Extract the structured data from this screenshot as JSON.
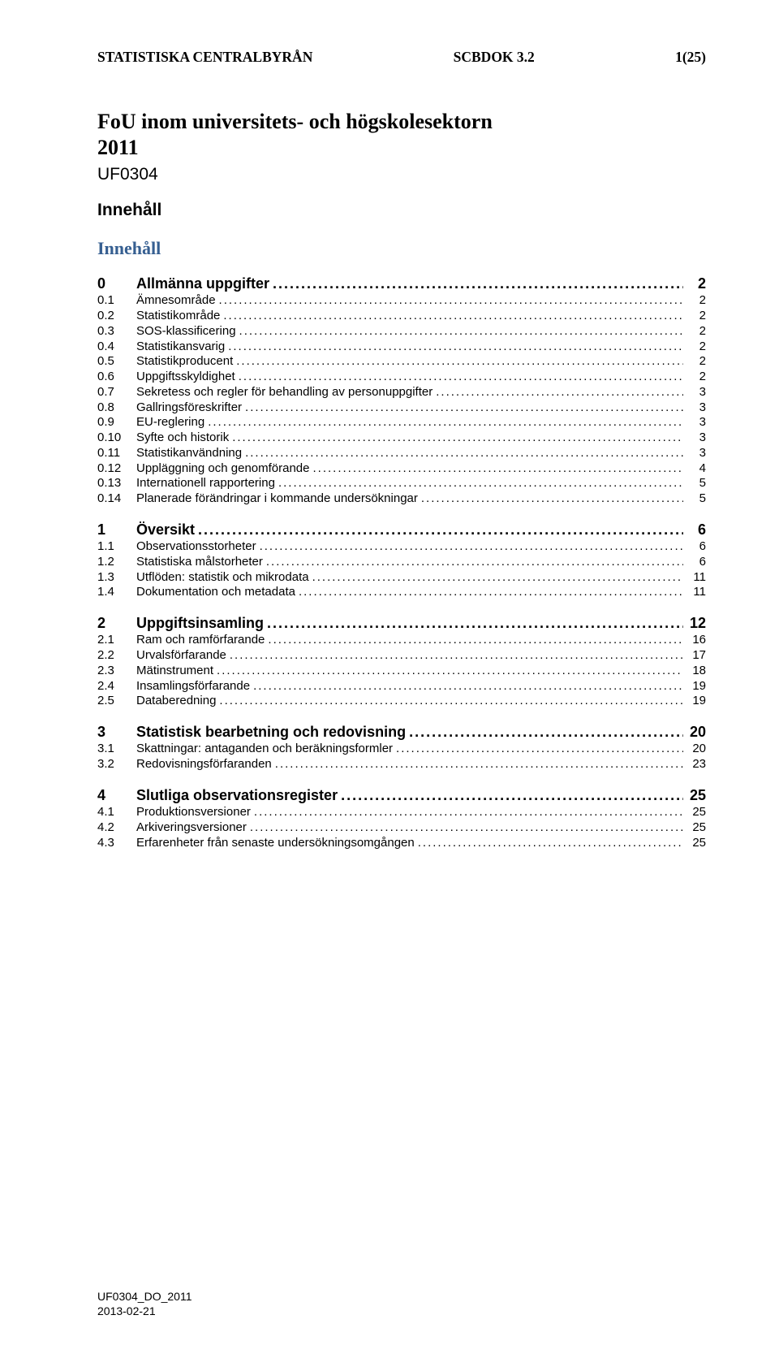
{
  "header": {
    "left": "STATISTISKA CENTRALBYRÅN",
    "center": "SCBDOK 3.2",
    "right": "1(25)"
  },
  "title_line1": "FoU inom universitets- och högskolesektorn",
  "title_line2": "2011",
  "code": "UF0304",
  "section_label": "Innehåll",
  "toc_heading": "Innehåll",
  "toc": [
    {
      "level": 0,
      "num": "0",
      "label": "Allmänna uppgifter",
      "page": "2",
      "first": true
    },
    {
      "level": 1,
      "num": "0.1",
      "label": "Ämnesområde",
      "page": "2"
    },
    {
      "level": 1,
      "num": "0.2",
      "label": "Statistikområde",
      "page": "2"
    },
    {
      "level": 1,
      "num": "0.3",
      "label": "SOS-klassificering",
      "page": "2"
    },
    {
      "level": 1,
      "num": "0.4",
      "label": "Statistikansvarig",
      "page": "2"
    },
    {
      "level": 1,
      "num": "0.5",
      "label": "Statistikproducent",
      "page": "2"
    },
    {
      "level": 1,
      "num": "0.6",
      "label": "Uppgiftsskyldighet",
      "page": "2"
    },
    {
      "level": 1,
      "num": "0.7",
      "label": "Sekretess och regler för behandling av personuppgifter",
      "page": "3"
    },
    {
      "level": 1,
      "num": "0.8",
      "label": "Gallringsföreskrifter",
      "page": "3"
    },
    {
      "level": 1,
      "num": "0.9",
      "label": "EU-reglering",
      "page": "3"
    },
    {
      "level": 1,
      "num": "0.10",
      "label": "Syfte och historik",
      "page": "3"
    },
    {
      "level": 1,
      "num": "0.11",
      "label": "Statistikanvändning",
      "page": "3"
    },
    {
      "level": 1,
      "num": "0.12",
      "label": "Uppläggning och genomförande",
      "page": "4"
    },
    {
      "level": 1,
      "num": "0.13",
      "label": "Internationell rapportering",
      "page": "5"
    },
    {
      "level": 1,
      "num": "0.14",
      "label": "Planerade förändringar i kommande undersökningar",
      "page": "5"
    },
    {
      "level": 0,
      "num": "1",
      "label": "Översikt",
      "page": "6"
    },
    {
      "level": 1,
      "num": "1.1",
      "label": "Observationsstorheter",
      "page": "6"
    },
    {
      "level": 1,
      "num": "1.2",
      "label": "Statistiska målstorheter",
      "page": "6"
    },
    {
      "level": 1,
      "num": "1.3",
      "label": "Utflöden: statistik och mikrodata",
      "page": "11"
    },
    {
      "level": 1,
      "num": "1.4",
      "label": "Dokumentation och metadata",
      "page": "11"
    },
    {
      "level": 0,
      "num": "2",
      "label": "Uppgiftsinsamling",
      "page": "12"
    },
    {
      "level": 1,
      "num": "2.1",
      "label": "Ram och ramförfarande",
      "page": "16"
    },
    {
      "level": 1,
      "num": "2.2",
      "label": "Urvalsförfarande",
      "page": "17"
    },
    {
      "level": 1,
      "num": "2.3",
      "label": "Mätinstrument",
      "page": "18"
    },
    {
      "level": 1,
      "num": "2.4",
      "label": "Insamlingsförfarande",
      "page": "19"
    },
    {
      "level": 1,
      "num": "2.5",
      "label": "Databeredning",
      "page": "19"
    },
    {
      "level": 0,
      "num": "3",
      "label": "Statistisk bearbetning och redovisning",
      "page": "20"
    },
    {
      "level": 1,
      "num": "3.1",
      "label": "Skattningar: antaganden och beräkningsformler",
      "page": "20"
    },
    {
      "level": 1,
      "num": "3.2",
      "label": "Redovisningsförfaranden",
      "page": "23"
    },
    {
      "level": 0,
      "num": "4",
      "label": "Slutliga observationsregister",
      "page": "25"
    },
    {
      "level": 1,
      "num": "4.1",
      "label": "Produktionsversioner",
      "page": "25"
    },
    {
      "level": 1,
      "num": "4.2",
      "label": "Arkiveringsversioner",
      "page": "25"
    },
    {
      "level": 1,
      "num": "4.3",
      "label": "Erfarenheter från senaste undersökningsomgången",
      "page": "25"
    }
  ],
  "footer": {
    "line1": "UF0304_DO_2011",
    "line2": "2013-02-21"
  },
  "colors": {
    "toc_heading": "#365f91",
    "text": "#000000",
    "background": "#ffffff"
  },
  "fonts": {
    "serif": "Times New Roman",
    "sans": "Arial"
  }
}
